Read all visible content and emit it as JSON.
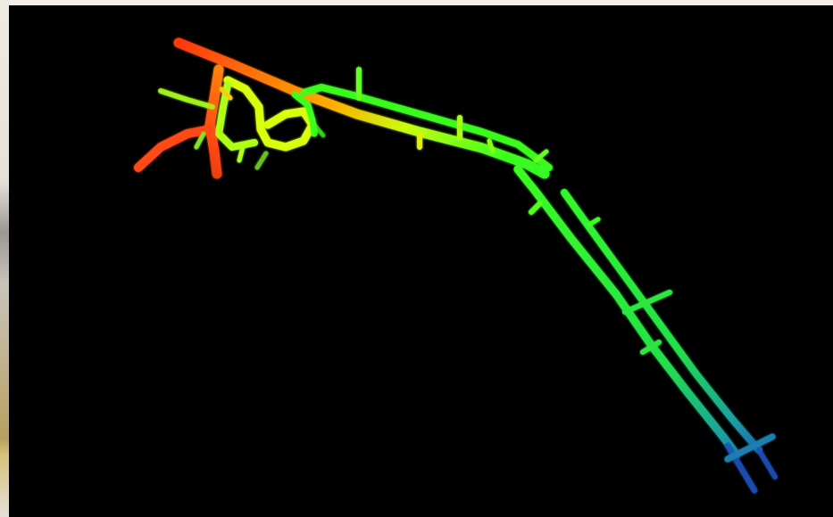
{
  "colors": {
    "background": "#000000",
    "low": "#ff3a10",
    "mid_high": "#ffd000",
    "mid": "#3cff1e",
    "low_end": "#1c5fb8"
  }
}
